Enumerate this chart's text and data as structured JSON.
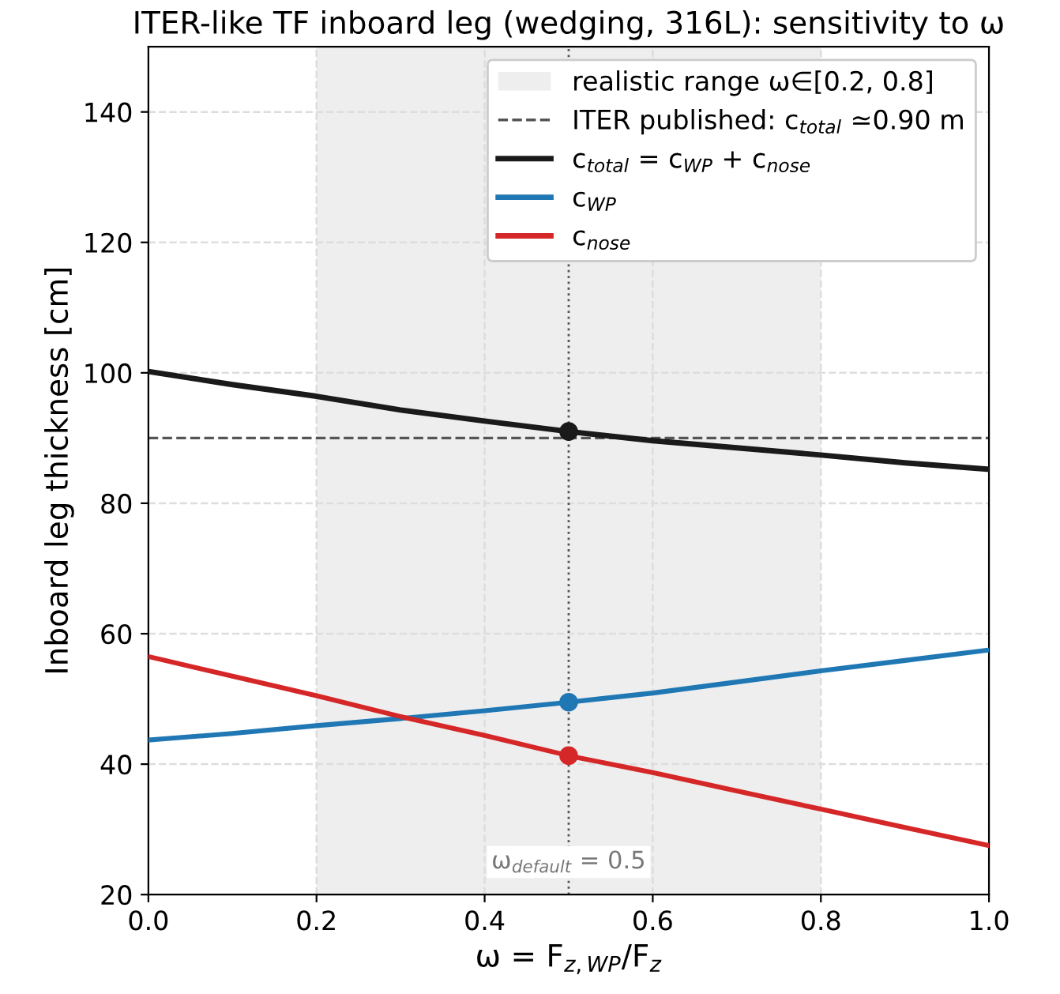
{
  "chart_data": {
    "type": "line",
    "title": "ITER-like TF inboard leg (wedging, 316L): sensitivity to ω",
    "xlabel": "ω = F$_{z,WP}$/F$_{z}$",
    "ylabel": "Inboard leg thickness [cm]",
    "x": [
      0,
      0.1,
      0.2,
      0.3,
      0.4,
      0.5,
      0.6,
      0.7,
      0.8,
      0.9,
      1.0
    ],
    "series": [
      {
        "name": "c$_{total}$ = c$_{WP}$ + c$_{nose}$",
        "color": "#1a1a1a",
        "values": [
          100.2,
          98.2,
          96.4,
          94.3,
          92.6,
          91.0,
          89.6,
          88.5,
          87.4,
          86.2,
          85.2
        ]
      },
      {
        "name": "c$_{WP}$",
        "color": "#1f77b4",
        "values": [
          43.7,
          44.7,
          45.9,
          47.0,
          48.2,
          49.5,
          50.9,
          52.6,
          54.3,
          55.9,
          57.5
        ]
      },
      {
        "name": "c$_{nose}$",
        "color": "#d62728",
        "values": [
          56.5,
          53.5,
          50.5,
          47.3,
          44.4,
          41.3,
          38.7,
          35.9,
          33.1,
          30.3,
          27.5
        ]
      },
      {
        "type": "scatter",
        "marker": "circle",
        "color": "#1a1a1a",
        "values": [
          null,
          null,
          null,
          null,
          null,
          91.0,
          null,
          null,
          null,
          null,
          null
        ]
      },
      {
        "type": "scatter",
        "marker": "circle",
        "color": "#1f77b4",
        "values": [
          null,
          null,
          null,
          null,
          null,
          49.5,
          null,
          null,
          null,
          null,
          null
        ]
      },
      {
        "type": "scatter",
        "marker": "circle",
        "color": "#d62728",
        "values": [
          null,
          null,
          null,
          null,
          null,
          41.3,
          null,
          null,
          null,
          null,
          null
        ]
      }
    ],
    "ref_lines": [
      {
        "axis": "y",
        "value": 90,
        "label": "ITER published: c$_{total}$ ≃0.90 m",
        "color": "#555555",
        "line_style": "dashed"
      },
      {
        "axis": "x",
        "value": 0.5,
        "label": "ω$_{default}$ = 0.5",
        "color": "#555555",
        "line_style": "dotted"
      }
    ],
    "bands": [
      {
        "axis": "x",
        "from": 0.2,
        "to": 0.8,
        "label": "realistic range ω∈[0.2, 0.8]",
        "color": "#eeeeee"
      }
    ],
    "xlim": [
      0,
      1
    ],
    "xticks": [
      {
        "value": 0,
        "label": "0.0"
      },
      0.2,
      0.4,
      0.6,
      0.8,
      {
        "value": 1,
        "label": "1.0"
      }
    ],
    "ylim": [
      20,
      150
    ],
    "yticks": [
      20,
      40,
      60,
      80,
      100,
      120,
      140
    ],
    "grid": true,
    "legend": "top right",
    "marker": "none",
    "line_style": "solid"
  }
}
